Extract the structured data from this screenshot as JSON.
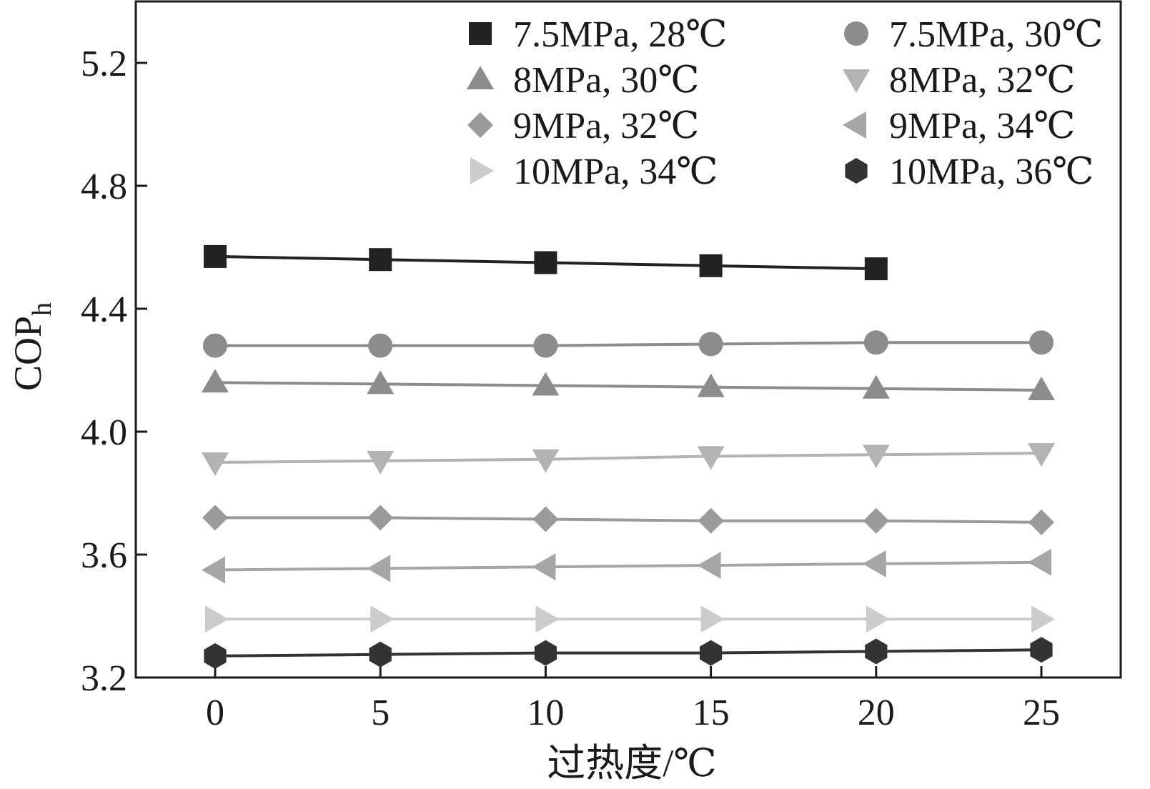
{
  "chart_data": {
    "type": "line",
    "title": "",
    "xlabel": "过热度/℃",
    "ylabel": "COP",
    "ylabel_subscript": "h",
    "x": [
      0,
      5,
      10,
      15,
      20,
      25
    ],
    "x_ticks": [
      "0",
      "5",
      "10",
      "15",
      "20",
      "25"
    ],
    "y_ticks": [
      "3.2",
      "3.6",
      "4.0",
      "4.4",
      "4.8",
      "5.2"
    ],
    "xlim": [
      -2.4,
      27.4
    ],
    "ylim": [
      3.2,
      5.4
    ],
    "grid": false,
    "legend_position": "top-right",
    "series": [
      {
        "name": "7.5MPa, 28℃",
        "marker": "square",
        "color": "#222222",
        "x": [
          0,
          5,
          10,
          15,
          20
        ],
        "values": [
          4.57,
          4.56,
          4.55,
          4.54,
          4.53
        ]
      },
      {
        "name": "7.5MPa, 30℃",
        "marker": "circle",
        "color": "#8c8c8c",
        "x": [
          0,
          5,
          10,
          15,
          20,
          25
        ],
        "values": [
          4.28,
          4.28,
          4.28,
          4.285,
          4.29,
          4.29
        ]
      },
      {
        "name": "8MPa, 30℃",
        "marker": "triangle-up",
        "color": "#8c8c8c",
        "x": [
          0,
          5,
          10,
          15,
          20,
          25
        ],
        "values": [
          4.16,
          4.155,
          4.15,
          4.145,
          4.14,
          4.135
        ]
      },
      {
        "name": "8MPa, 32℃",
        "marker": "triangle-down",
        "color": "#b3b3b3",
        "x": [
          0,
          5,
          10,
          15,
          20,
          25
        ],
        "values": [
          3.9,
          3.905,
          3.91,
          3.92,
          3.925,
          3.93
        ]
      },
      {
        "name": "9MPa, 32℃",
        "marker": "diamond",
        "color": "#9a9a9a",
        "x": [
          0,
          5,
          10,
          15,
          20,
          25
        ],
        "values": [
          3.72,
          3.72,
          3.715,
          3.71,
          3.71,
          3.705
        ]
      },
      {
        "name": "9MPa, 34℃",
        "marker": "triangle-left",
        "color": "#a6a6a6",
        "x": [
          0,
          5,
          10,
          15,
          20,
          25
        ],
        "values": [
          3.55,
          3.555,
          3.56,
          3.565,
          3.57,
          3.575
        ]
      },
      {
        "name": "10MPa, 34℃",
        "marker": "triangle-right",
        "color": "#cccccc",
        "x": [
          0,
          5,
          10,
          15,
          20,
          25
        ],
        "values": [
          3.39,
          3.39,
          3.39,
          3.39,
          3.39,
          3.39
        ]
      },
      {
        "name": "10MPa, 36℃",
        "marker": "hexagon",
        "color": "#333333",
        "x": [
          0,
          5,
          10,
          15,
          20,
          25
        ],
        "values": [
          3.27,
          3.275,
          3.28,
          3.28,
          3.285,
          3.29
        ]
      }
    ]
  }
}
